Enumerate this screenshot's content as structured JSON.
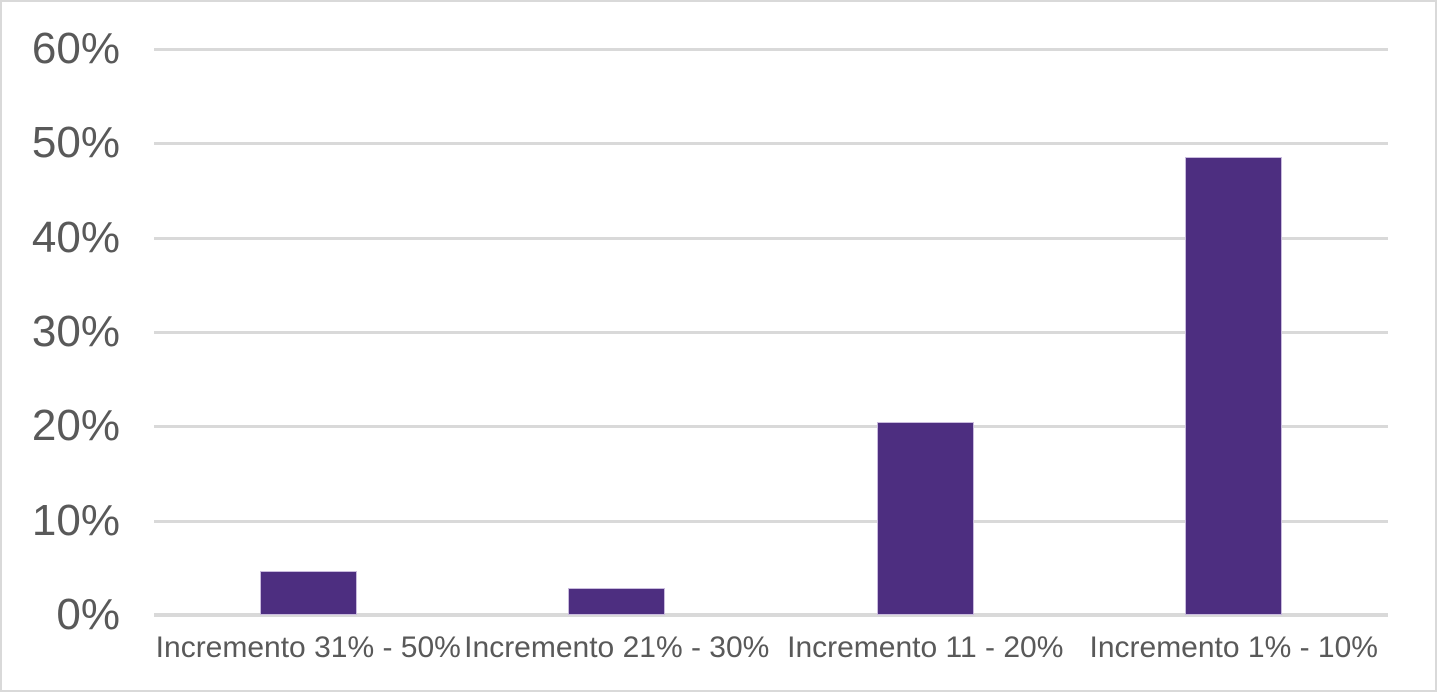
{
  "chart_data": {
    "type": "bar",
    "title": "",
    "xlabel": "",
    "ylabel": "",
    "categories": [
      "Incremento 31% - 50%",
      "Incremento 21% - 30%",
      "Incremento 11 - 20%",
      "Incremento 1% - 10%"
    ],
    "values": [
      4.7,
      2.9,
      20.5,
      48.5
    ],
    "value_unit": "%",
    "ylim": [
      0,
      60
    ],
    "ytick_step": 10,
    "ytick_labels": [
      "0%",
      "10%",
      "20%",
      "30%",
      "40%",
      "50%",
      "60%"
    ],
    "grid": true,
    "legend": "none",
    "colors": {
      "bar_fill": "#4d2e80",
      "bar_border": "#c9bbdd",
      "gridline": "#d9d9d9",
      "axis_line": "#d9d9d9",
      "axis_text": "#595959",
      "frame_border": "#d9d9d9",
      "background": "#ffffff"
    }
  }
}
